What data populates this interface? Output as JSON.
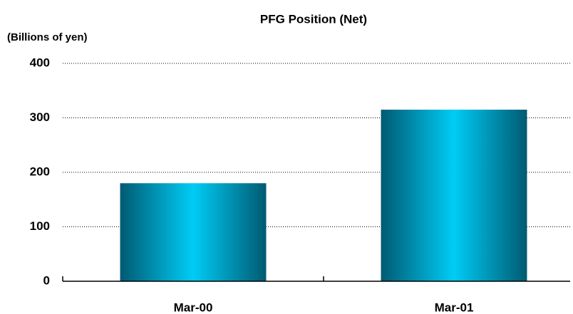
{
  "chart_data": {
    "type": "bar",
    "title": "PFG Position (Net)",
    "y_label": "(Billions of yen)",
    "categories": [
      "Mar-00",
      "Mar-01"
    ],
    "values": [
      180,
      315
    ],
    "color": "#00ccf5",
    "ylim": [
      0,
      400
    ],
    "yticks": [
      0,
      100,
      200,
      300,
      400
    ],
    "grid": true
  }
}
